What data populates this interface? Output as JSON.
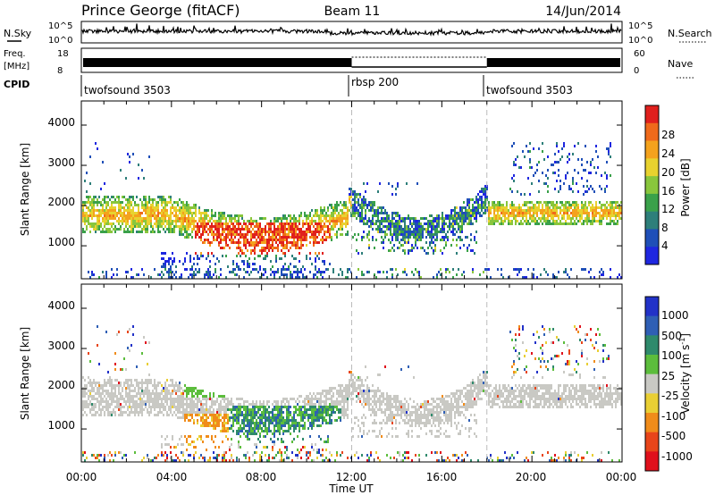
{
  "header": {
    "station": "Prince George (fitACF)",
    "beam": "Beam 11",
    "date": "14/Jun/2014"
  },
  "noise_panel": {
    "left_label": "N.Sky",
    "right_label": "N.Search",
    "left_ticks": [
      "10^5",
      "10^0"
    ],
    "right_ticks": [
      "10^5",
      "10^0"
    ]
  },
  "freq_panel": {
    "left_label_1": "Freq.",
    "left_label_2": "[MHz]",
    "right_label": "Nave",
    "left_ticks": [
      "18",
      "8"
    ],
    "right_ticks": [
      "60",
      "0"
    ]
  },
  "cpid_panel": {
    "label": "CPID",
    "segments": [
      {
        "name": "twofsound 3503",
        "start_hr": 0
      },
      {
        "name": "rbsp 200",
        "start_hr": 12
      },
      {
        "name": "twofsound 3503",
        "start_hr": 18
      }
    ]
  },
  "time_axis": {
    "label": "Time UT",
    "ticks": [
      "00:00",
      "04:00",
      "08:00",
      "12:00",
      "16:00",
      "20:00",
      "00:00"
    ]
  },
  "chart_data": [
    {
      "type": "heatmap",
      "quantity": "Power",
      "ylabel": "Slant Range [km]",
      "ylim": [
        180,
        4600
      ],
      "yticks": [
        1000,
        2000,
        3000,
        4000
      ],
      "xlim_hours": [
        0,
        24
      ],
      "colorbar": {
        "label": "Power [dB]",
        "tick_labels": [
          "4",
          "8",
          "12",
          "16",
          "20",
          "24",
          "28"
        ],
        "colors": [
          "#1f27e0",
          "#1f4fb8",
          "#2e7f7a",
          "#3aa14a",
          "#89c63c",
          "#e8d22f",
          "#f4a21d",
          "#ef6a1b",
          "#e0201d"
        ]
      },
      "features": [
        {
          "band": "main_echo",
          "start_hr": 0.0,
          "end_hr": 11.5,
          "range_km": [
            1300,
            2200
          ],
          "power_db": [
            8,
            20
          ]
        },
        {
          "band": "intense_core",
          "start_hr": 5.0,
          "end_hr": 11.0,
          "range_km": [
            800,
            1500
          ],
          "power_db": [
            20,
            30
          ]
        },
        {
          "band": "arc",
          "start_hr": 11.5,
          "end_hr": 17.5,
          "range_km": [
            1200,
            2300
          ],
          "power_db": [
            4,
            16
          ]
        },
        {
          "band": "evening_echo",
          "start_hr": 18.0,
          "end_hr": 24.0,
          "range_km": [
            1500,
            2100
          ],
          "power_db": [
            6,
            18
          ]
        }
      ]
    },
    {
      "type": "heatmap",
      "quantity": "Velocity",
      "ylabel": "Slant Range [km]",
      "ylim": [
        180,
        4600
      ],
      "yticks": [
        1000,
        2000,
        3000,
        4000
      ],
      "xlim_hours": [
        0,
        24
      ],
      "colorbar": {
        "label": "Velocity [m s^-1]",
        "tick_labels": [
          "1000",
          "500",
          "100",
          "25",
          "-25",
          "-100",
          "-500",
          "-1000"
        ],
        "colors": [
          "#2232c8",
          "#2f5fb5",
          "#2f8a6c",
          "#5cbd3c",
          "#c9c9c4",
          "#e9cf34",
          "#f08c1a",
          "#e8451a",
          "#e0101c"
        ]
      },
      "features": [
        {
          "band": "ground_scatter",
          "start_hr": 0.0,
          "end_hr": 24.0,
          "range_km": [
            1200,
            2300
          ],
          "velocity_ms": [
            -25,
            25
          ]
        },
        {
          "band": "green_patch",
          "start_hr": 6.5,
          "end_hr": 11.5,
          "range_km": [
            700,
            1600
          ],
          "velocity_ms": [
            100,
            500
          ]
        },
        {
          "band": "orange_patch",
          "start_hr": 4.5,
          "end_hr": 6.5,
          "range_km": [
            500,
            1400
          ],
          "velocity_ms": [
            -500,
            -100
          ]
        }
      ]
    }
  ]
}
